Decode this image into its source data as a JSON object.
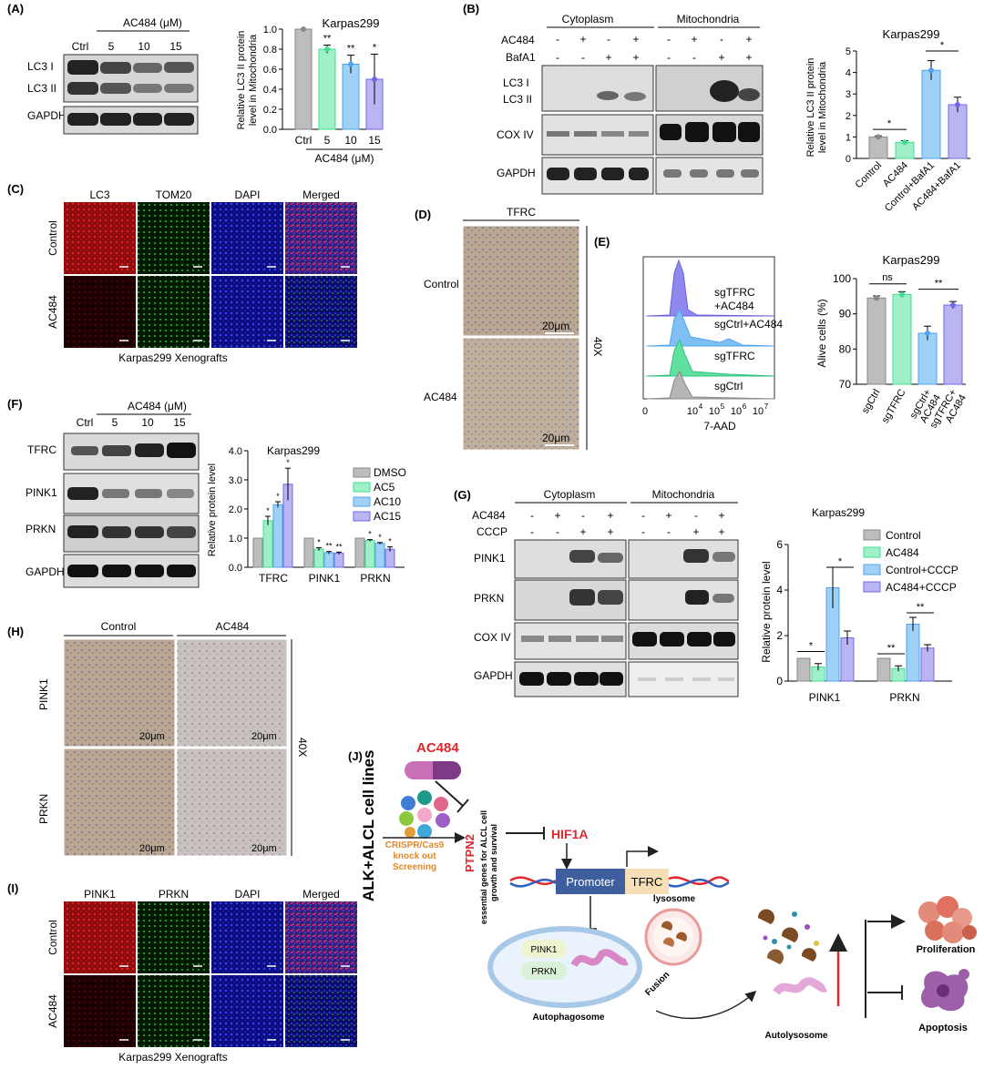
{
  "panels": {
    "A": "(A)",
    "B": "(B)",
    "C": "(C)",
    "D": "(D)",
    "E": "(E)",
    "F": "(F)",
    "G": "(G)",
    "H": "(H)",
    "I": "(I)",
    "J": "(J)"
  },
  "cell_line": "Karpas299",
  "ac484_um": "AC484 (μM)",
  "doses": [
    "Ctrl",
    "5",
    "10",
    "15"
  ],
  "blot_labels": {
    "lc3i": "LC3 I",
    "lc3ii": "LC3 II",
    "gapdh": "GAPDH",
    "cox4": "COX IV",
    "tfrc": "TFRC",
    "pink1": "PINK1",
    "prkn": "PRKN"
  },
  "fractions": {
    "cyto": "Cytoplasm",
    "mito": "Mitochondria"
  },
  "treat_labels": {
    "ac484": "AC484",
    "bafa1": "BafA1",
    "cccp": "CCCP"
  },
  "pm_rows": {
    "row1": [
      "-",
      "+",
      "-",
      "+",
      "-",
      "+",
      "-",
      "+"
    ],
    "row2": [
      "-",
      "-",
      "+",
      "+",
      "-",
      "-",
      "+",
      "+"
    ]
  },
  "sig": {
    "one": "*",
    "two": "**",
    "ns": "ns"
  },
  "if_c": {
    "headers": [
      "LC3",
      "TOM20",
      "DAPI",
      "Merged"
    ],
    "rows": [
      "Control",
      "AC484"
    ],
    "caption": "Karpas299 Xenografts"
  },
  "if_i": {
    "headers": [
      "PINK1",
      "PRKN",
      "DAPI",
      "Merged"
    ],
    "rows": [
      "Control",
      "AC484"
    ],
    "caption": "Karpas299 Xenografts"
  },
  "ihc_d": {
    "header": "TFRC",
    "rows": [
      "Control",
      "AC484"
    ],
    "scale": "20μm",
    "mag": "40X"
  },
  "ihc_h": {
    "headers": [
      "Control",
      "AC484"
    ],
    "rows": [
      "PINK1",
      "PRKN"
    ],
    "scale": "20μm",
    "mag": "40X"
  },
  "flow": {
    "labels": [
      "sgTFRC",
      "+AC484",
      "sgCtrl+AC484",
      "sgTFRC",
      "sgCtrl"
    ],
    "xlabel": "7-AAD",
    "ticks": [
      "0",
      "10",
      "10",
      "10",
      "10"
    ],
    "exps": [
      "4",
      "5",
      "6",
      "7"
    ]
  },
  "legend_f": [
    "DMSO",
    "AC5",
    "AC10",
    "AC15"
  ],
  "legend_g": [
    "Control",
    "AC484",
    "Control+CCCP",
    "AC484+CCCP"
  ],
  "colors": {
    "gray": "#bdbdbd",
    "green": "#9ff0c8",
    "blue": "#9fd0f5",
    "purple": "#b9b4f2",
    "dgreen": "#3ee08f",
    "dblue": "#4fa3f0",
    "dpurple": "#7068e8"
  },
  "chart_data": [
    {
      "id": "A",
      "type": "bar",
      "categories": [
        "Ctrl",
        "5",
        "10",
        "15"
      ],
      "values": [
        1.0,
        0.8,
        0.65,
        0.5
      ],
      "errors": [
        0.0,
        0.04,
        0.09,
        0.25
      ],
      "title": "Karpas299",
      "xlabel": "AC484 (μM)",
      "ylabel": "Relative LC3 II protein level in Mitochondria",
      "ylim": [
        0,
        1.0
      ],
      "yticks": [
        "0.0",
        "0.2",
        "0.4",
        "0.6",
        "0.8",
        "1.0"
      ],
      "sig": [
        "",
        "**",
        "**",
        "*"
      ]
    },
    {
      "id": "B",
      "type": "bar",
      "categories": [
        "Control",
        "AC484",
        "Control+BafA1",
        "AC484+BafA1"
      ],
      "values": [
        1.0,
        0.75,
        4.1,
        2.5
      ],
      "errors": [
        0.05,
        0.08,
        0.45,
        0.35
      ],
      "title": "Karpas299",
      "ylabel": "Relative LC3 II protein level in Mitochondria",
      "ylim": [
        0,
        5
      ],
      "yticks": [
        "0",
        "1",
        "2",
        "3",
        "4",
        "5"
      ]
    },
    {
      "id": "E",
      "type": "bar",
      "categories": [
        "sgCtrl",
        "sgTFRC",
        "sgCtrl+ AC484",
        "sgTFRC+ AC484"
      ],
      "values": [
        94.5,
        95.5,
        84.5,
        92.5
      ],
      "errors": [
        0.6,
        0.8,
        2.0,
        1.0
      ],
      "title": "Karpas299",
      "ylabel": "Alive cells (%)",
      "ylim": [
        70,
        100
      ],
      "yticks": [
        "70",
        "80",
        "90",
        "100"
      ]
    },
    {
      "id": "F",
      "type": "bar",
      "categories": [
        "TFRC",
        "PINK1",
        "PRKN"
      ],
      "series": [
        {
          "name": "DMSO",
          "values": [
            1.0,
            1.0,
            1.0
          ],
          "errors": [
            0,
            0,
            0
          ]
        },
        {
          "name": "AC5",
          "values": [
            1.6,
            0.62,
            0.92
          ],
          "errors": [
            0.15,
            0.05,
            0.03
          ]
        },
        {
          "name": "AC10",
          "values": [
            2.15,
            0.5,
            0.82
          ],
          "errors": [
            0.1,
            0.04,
            0.03
          ]
        },
        {
          "name": "AC15",
          "values": [
            2.85,
            0.48,
            0.62
          ],
          "errors": [
            0.55,
            0.04,
            0.08
          ]
        }
      ],
      "title": "Karpas299",
      "ylabel": "Relative protein level",
      "ylim": [
        0,
        4.0
      ],
      "yticks": [
        "0.0",
        "1.0",
        "2.0",
        "3.0",
        "4.0"
      ]
    },
    {
      "id": "G",
      "type": "bar",
      "categories": [
        "PINK1",
        "PRKN"
      ],
      "series": [
        {
          "name": "Control",
          "values": [
            1.0,
            1.0
          ],
          "errors": [
            0,
            0
          ]
        },
        {
          "name": "AC484",
          "values": [
            0.62,
            0.55
          ],
          "errors": [
            0.15,
            0.12
          ]
        },
        {
          "name": "Control+CCCP",
          "values": [
            4.1,
            2.5
          ],
          "errors": [
            0.9,
            0.3
          ]
        },
        {
          "name": "AC484+CCCP",
          "values": [
            1.9,
            1.45
          ],
          "errors": [
            0.3,
            0.15
          ]
        }
      ],
      "title": "Karpas299",
      "ylabel": "Relative protein level",
      "ylim": [
        0,
        6
      ],
      "yticks": [
        "0",
        "2",
        "4",
        "6"
      ]
    }
  ],
  "schematic": {
    "side": "ALK+ALCL cell lines",
    "drug": "AC484",
    "screen": [
      "CRISPR/Cas9",
      "knock out",
      "Screening"
    ],
    "ptpn2": "PTPN2",
    "essential": [
      "essential genes for ALCL cell",
      "growth and survival"
    ],
    "hif": "HIF1A",
    "promoter": "Promoter",
    "tfrc": "TFRC",
    "lysosome": "lysosome",
    "fusion": "Fusion",
    "pink1": "PINK1",
    "prkn": "PRKN",
    "autophagosome": "Autophagosome",
    "autolysosome": "Autolysosome",
    "proliferation": "Proliferation",
    "apoptosis": "Apoptosis"
  }
}
